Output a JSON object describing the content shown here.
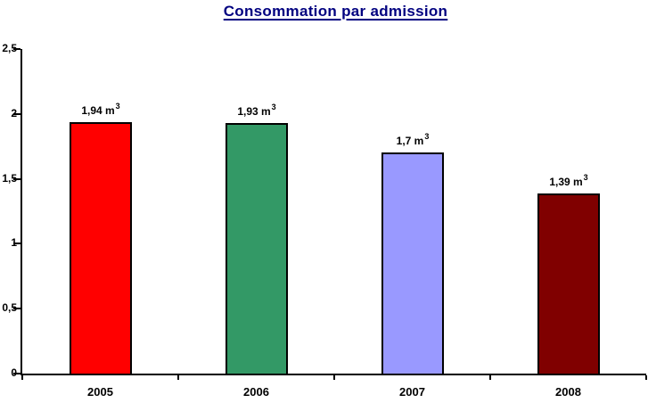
{
  "chart_data": {
    "type": "bar",
    "title": "Consommation par admission",
    "title_color": "#000080",
    "categories": [
      "2005",
      "2006",
      "2007",
      "2008"
    ],
    "values": [
      1.94,
      1.93,
      1.7,
      1.39
    ],
    "bar_labels": [
      "1,94",
      "1,93",
      "1,7",
      "1,39"
    ],
    "bar_label_unit": "m",
    "bar_label_exponent": "3",
    "bar_colors": [
      "#FF0000",
      "#339966",
      "#9999FF",
      "#800000"
    ],
    "bar_border_color": "#000000",
    "axis_color": "#000000",
    "background": "#FFFFFF",
    "xlabel": "",
    "ylabel": "",
    "ylim": [
      0,
      2.5
    ],
    "yticks": [
      {
        "label": "0",
        "value": 0
      },
      {
        "label": "0,5",
        "value": 0.5
      },
      {
        "label": "1",
        "value": 1
      },
      {
        "label": "1,5",
        "value": 1.5
      },
      {
        "label": "2",
        "value": 2
      },
      {
        "label": "2,5",
        "value": 2.5
      }
    ],
    "grid": false,
    "legend": false
  }
}
